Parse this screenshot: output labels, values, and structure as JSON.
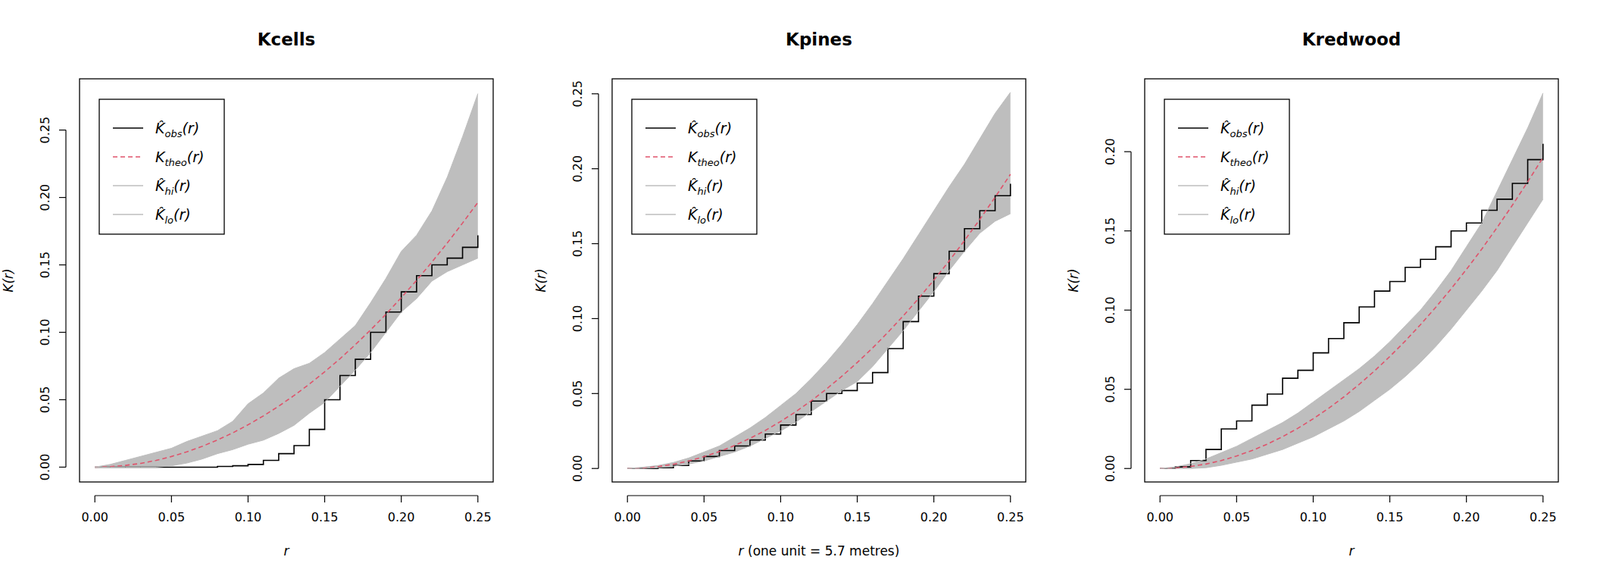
{
  "chart_data": [
    {
      "type": "line",
      "title": "Kcells",
      "x_label": "r",
      "y_label": "K(r)",
      "x": [
        0,
        0.01,
        0.02,
        0.03,
        0.04,
        0.05,
        0.06,
        0.07,
        0.08,
        0.09,
        0.1,
        0.11,
        0.12,
        0.13,
        0.14,
        0.15,
        0.16,
        0.17,
        0.18,
        0.19,
        0.2,
        0.21,
        0.22,
        0.23,
        0.24,
        0.25
      ],
      "xlim": [
        -0.01,
        0.26
      ],
      "ylim": [
        -0.011,
        0.288
      ],
      "xticks": [
        {
          "value": 0,
          "label": "0.00"
        },
        {
          "value": 0.05,
          "label": "0.05"
        },
        {
          "value": 0.1,
          "label": "0.10"
        },
        {
          "value": 0.15,
          "label": "0.15"
        },
        {
          "value": 0.2,
          "label": "0.20"
        },
        {
          "value": 0.25,
          "label": "0.25"
        }
      ],
      "yticks": [
        {
          "value": 0,
          "label": "0.00"
        },
        {
          "value": 0.05,
          "label": "0.05"
        },
        {
          "value": 0.1,
          "label": "0.10"
        },
        {
          "value": 0.15,
          "label": "0.15"
        },
        {
          "value": 0.2,
          "label": "0.20"
        },
        {
          "value": 0.25,
          "label": "0.25"
        }
      ],
      "legend": "topleft",
      "series": [
        {
          "name": "K̂obs(r)",
          "color": "#000000",
          "type": "step",
          "line_style": "solid",
          "values": [
            0,
            0,
            0,
            0,
            0,
            0,
            0,
            0,
            0.0005,
            0.001,
            0.002,
            0.005,
            0.01,
            0.016,
            0.028,
            0.05,
            0.068,
            0.08,
            0.1,
            0.115,
            0.13,
            0.142,
            0.15,
            0.155,
            0.163,
            0.172
          ]
        },
        {
          "name": "Ktheo(r)",
          "color": "#DF536B",
          "type": "line",
          "line_style": "dashed",
          "values": [
            0,
            0.0003,
            0.0013,
            0.0028,
            0.005,
            0.0079,
            0.0113,
            0.0154,
            0.0201,
            0.0254,
            0.0314,
            0.038,
            0.0452,
            0.0531,
            0.0616,
            0.0707,
            0.0804,
            0.0908,
            0.1018,
            0.1134,
            0.1257,
            0.1385,
            0.1521,
            0.1662,
            0.181,
            0.1963
          ]
        },
        {
          "name": "K̂hi(r)",
          "color": "#BEBEBE",
          "type": "band",
          "line_style": "solid",
          "values": [
            0,
            0.002,
            0.005,
            0.008,
            0.011,
            0.014,
            0.019,
            0.023,
            0.027,
            0.034,
            0.047,
            0.055,
            0.066,
            0.073,
            0.077,
            0.085,
            0.095,
            0.105,
            0.122,
            0.14,
            0.16,
            0.172,
            0.19,
            0.215,
            0.245,
            0.277
          ]
        },
        {
          "name": "K̂lo(r)",
          "color": "#BEBEBE",
          "type": "band",
          "line_style": "solid",
          "values": [
            0,
            0,
            0,
            0,
            0,
            0.001,
            0.003,
            0.006,
            0.01,
            0.013,
            0.017,
            0.02,
            0.025,
            0.031,
            0.04,
            0.048,
            0.06,
            0.072,
            0.085,
            0.1,
            0.115,
            0.125,
            0.138,
            0.145,
            0.15,
            0.155
          ]
        }
      ]
    },
    {
      "type": "line",
      "title": "Kpines",
      "x_label": "r (one unit = 5.7 metres)",
      "y_label": "K(r)",
      "x": [
        0,
        0.01,
        0.02,
        0.03,
        0.04,
        0.05,
        0.06,
        0.07,
        0.08,
        0.09,
        0.1,
        0.11,
        0.12,
        0.13,
        0.14,
        0.15,
        0.16,
        0.17,
        0.18,
        0.19,
        0.2,
        0.21,
        0.22,
        0.23,
        0.24,
        0.25
      ],
      "xlim": [
        -0.01,
        0.26
      ],
      "ylim": [
        -0.009,
        0.26
      ],
      "xticks": [
        {
          "value": 0,
          "label": "0.00"
        },
        {
          "value": 0.05,
          "label": "0.05"
        },
        {
          "value": 0.1,
          "label": "0.10"
        },
        {
          "value": 0.15,
          "label": "0.15"
        },
        {
          "value": 0.2,
          "label": "0.20"
        },
        {
          "value": 0.25,
          "label": "0.25"
        }
      ],
      "yticks": [
        {
          "value": 0,
          "label": "0.00"
        },
        {
          "value": 0.05,
          "label": "0.05"
        },
        {
          "value": 0.1,
          "label": "0.10"
        },
        {
          "value": 0.15,
          "label": "0.15"
        },
        {
          "value": 0.2,
          "label": "0.20"
        },
        {
          "value": 0.25,
          "label": "0.25"
        }
      ],
      "legend": "topleft",
      "series": [
        {
          "name": "K̂obs(r)",
          "color": "#000000",
          "type": "step",
          "line_style": "solid",
          "values": [
            0,
            0,
            0.0005,
            0.002,
            0.005,
            0.008,
            0.012,
            0.015,
            0.019,
            0.023,
            0.029,
            0.036,
            0.045,
            0.05,
            0.052,
            0.057,
            0.064,
            0.08,
            0.098,
            0.115,
            0.13,
            0.145,
            0.16,
            0.172,
            0.182,
            0.19
          ]
        },
        {
          "name": "Ktheo(r)",
          "color": "#DF536B",
          "type": "line",
          "line_style": "dashed",
          "values": [
            0,
            0.0003,
            0.0013,
            0.0028,
            0.005,
            0.0079,
            0.0113,
            0.0154,
            0.0201,
            0.0254,
            0.0314,
            0.038,
            0.0452,
            0.0531,
            0.0616,
            0.0707,
            0.0804,
            0.0908,
            0.1018,
            0.1134,
            0.1257,
            0.1385,
            0.1521,
            0.1662,
            0.181,
            0.1963
          ]
        },
        {
          "name": "K̂hi(r)",
          "color": "#BEBEBE",
          "type": "band",
          "line_style": "solid",
          "values": [
            0,
            0.0008,
            0.002,
            0.004,
            0.007,
            0.011,
            0.015,
            0.021,
            0.027,
            0.034,
            0.042,
            0.05,
            0.06,
            0.071,
            0.083,
            0.096,
            0.11,
            0.125,
            0.14,
            0.156,
            0.172,
            0.188,
            0.203,
            0.22,
            0.237,
            0.251
          ]
        },
        {
          "name": "K̂lo(r)",
          "color": "#BEBEBE",
          "type": "band",
          "line_style": "solid",
          "values": [
            0,
            0,
            0.0005,
            0.0015,
            0.003,
            0.005,
            0.008,
            0.011,
            0.015,
            0.02,
            0.025,
            0.031,
            0.038,
            0.045,
            0.052,
            0.058,
            0.068,
            0.08,
            0.092,
            0.105,
            0.118,
            0.132,
            0.145,
            0.157,
            0.165,
            0.17
          ]
        }
      ]
    },
    {
      "type": "line",
      "title": "Kredwood",
      "x_label": "r",
      "y_label": "K(r)",
      "x": [
        0,
        0.01,
        0.02,
        0.03,
        0.04,
        0.05,
        0.06,
        0.07,
        0.08,
        0.09,
        0.1,
        0.11,
        0.12,
        0.13,
        0.14,
        0.15,
        0.16,
        0.17,
        0.18,
        0.19,
        0.2,
        0.21,
        0.22,
        0.23,
        0.24,
        0.25
      ],
      "xlim": [
        -0.01,
        0.26
      ],
      "ylim": [
        -0.0085,
        0.246
      ],
      "xticks": [
        {
          "value": 0,
          "label": "0.00"
        },
        {
          "value": 0.05,
          "label": "0.05"
        },
        {
          "value": 0.1,
          "label": "0.10"
        },
        {
          "value": 0.15,
          "label": "0.15"
        },
        {
          "value": 0.2,
          "label": "0.20"
        },
        {
          "value": 0.25,
          "label": "0.25"
        }
      ],
      "yticks": [
        {
          "value": 0,
          "label": "0.00"
        },
        {
          "value": 0.05,
          "label": "0.05"
        },
        {
          "value": 0.1,
          "label": "0.10"
        },
        {
          "value": 0.15,
          "label": "0.15"
        },
        {
          "value": 0.2,
          "label": "0.20"
        }
      ],
      "legend": "topleft",
      "series": [
        {
          "name": "K̂obs(r)",
          "color": "#000000",
          "type": "step",
          "line_style": "solid",
          "values": [
            0,
            0.001,
            0.005,
            0.012,
            0.025,
            0.03,
            0.04,
            0.047,
            0.057,
            0.062,
            0.073,
            0.082,
            0.092,
            0.102,
            0.112,
            0.118,
            0.127,
            0.132,
            0.14,
            0.15,
            0.155,
            0.163,
            0.17,
            0.18,
            0.195,
            0.205
          ]
        },
        {
          "name": "Ktheo(r)",
          "color": "#DF536B",
          "type": "line",
          "line_style": "dashed",
          "values": [
            0,
            0.0003,
            0.0013,
            0.0028,
            0.005,
            0.0079,
            0.0113,
            0.0154,
            0.0201,
            0.0254,
            0.0314,
            0.038,
            0.0452,
            0.0531,
            0.0616,
            0.0707,
            0.0804,
            0.0908,
            0.1018,
            0.1134,
            0.1257,
            0.1385,
            0.1521,
            0.1662,
            0.181,
            0.1963
          ]
        },
        {
          "name": "K̂hi(r)",
          "color": "#BEBEBE",
          "type": "band",
          "line_style": "solid",
          "values": [
            0,
            0.001,
            0.003,
            0.006,
            0.01,
            0.014,
            0.019,
            0.024,
            0.029,
            0.035,
            0.042,
            0.049,
            0.056,
            0.063,
            0.071,
            0.08,
            0.09,
            0.1,
            0.112,
            0.125,
            0.14,
            0.155,
            0.175,
            0.195,
            0.215,
            0.237
          ]
        },
        {
          "name": "K̂lo(r)",
          "color": "#BEBEBE",
          "type": "band",
          "line_style": "solid",
          "values": [
            0,
            0,
            0,
            0.0005,
            0.002,
            0.004,
            0.006,
            0.009,
            0.012,
            0.016,
            0.02,
            0.025,
            0.03,
            0.036,
            0.043,
            0.05,
            0.058,
            0.067,
            0.077,
            0.088,
            0.1,
            0.112,
            0.125,
            0.14,
            0.155,
            0.17
          ]
        }
      ]
    }
  ]
}
